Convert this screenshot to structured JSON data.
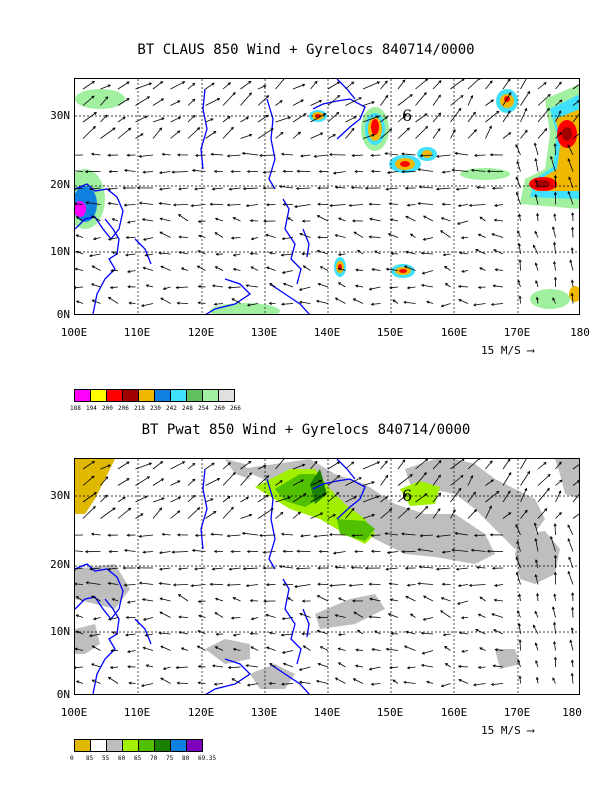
{
  "top": {
    "title": "BT CLAUS 850 Wind + Gyrelocs 840714/0000",
    "lat_labels": [
      "30N",
      "20N",
      "10N",
      "0N"
    ],
    "lon_labels": [
      "100E",
      "110E",
      "120E",
      "130E",
      "140E",
      "150E",
      "160E",
      "170E",
      "180"
    ],
    "ref_vector": "15 M/S",
    "storm_symbol": "6",
    "colorbar": {
      "colors": [
        "#ff00ff",
        "#ffff00",
        "#ff0000",
        "#a00000",
        "#f0b800",
        "#1080e0",
        "#40e0ff",
        "#60c060",
        "#a0f0a0",
        "#e0e0e0"
      ],
      "labels": [
        "188",
        "194",
        "200",
        "206",
        "218",
        "230",
        "242",
        "248",
        "254",
        "260",
        "266"
      ]
    }
  },
  "bottom": {
    "title": "BT Pwat 850 Wind + Gyrelocs 840714/0000",
    "lat_labels": [
      "30N",
      "20N",
      "10N",
      "0N"
    ],
    "lon_labels": [
      "100E",
      "110E",
      "120E",
      "130E",
      "140E",
      "150E",
      "160E",
      "170E",
      "180"
    ],
    "ref_vector": "15 M/S",
    "storm_symbol": "6",
    "colorbar": {
      "colors": [
        "#e0b800",
        "#ffffff",
        "#bebebe",
        "#a0f000",
        "#50c000",
        "#1a8000",
        "#1080e0",
        "#8000c0"
      ],
      "labels": [
        "0",
        "85",
        "55",
        "60",
        "65",
        "70",
        "75",
        "80",
        "69.35"
      ]
    }
  }
}
